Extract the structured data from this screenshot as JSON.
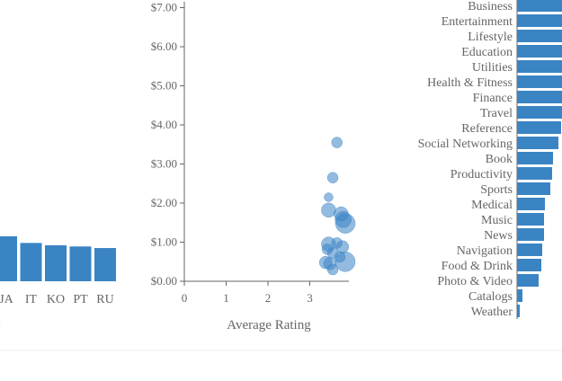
{
  "chart_data": [
    {
      "type": "bar",
      "categories": [
        "JA",
        "IT",
        "KO",
        "PT",
        "RU"
      ],
      "values": [
        1.15,
        0.98,
        0.92,
        0.89,
        0.85
      ],
      "xlabel": "e",
      "ylabel": ""
    },
    {
      "type": "scatter",
      "xlabel": "Average Rating",
      "ylabel": "",
      "xlim": [
        0,
        4
      ],
      "ylim": [
        0,
        7
      ],
      "x_ticks": [
        "0",
        "1",
        "2",
        "3"
      ],
      "y_ticks": [
        "$0.00",
        "$1.00",
        "$2.00",
        "$3.00",
        "$4.00",
        "$5.00",
        "$6.00",
        "$7.00"
      ],
      "points": [
        {
          "x": 3.65,
          "y": 3.55,
          "size": 6
        },
        {
          "x": 3.55,
          "y": 2.65,
          "size": 6
        },
        {
          "x": 3.45,
          "y": 2.15,
          "size": 5
        },
        {
          "x": 3.45,
          "y": 1.82,
          "size": 8
        },
        {
          "x": 3.75,
          "y": 1.72,
          "size": 8
        },
        {
          "x": 3.8,
          "y": 1.58,
          "size": 9
        },
        {
          "x": 3.85,
          "y": 1.48,
          "size": 11
        },
        {
          "x": 3.65,
          "y": 0.98,
          "size": 6
        },
        {
          "x": 3.45,
          "y": 0.95,
          "size": 8
        },
        {
          "x": 3.78,
          "y": 0.88,
          "size": 7
        },
        {
          "x": 3.42,
          "y": 0.82,
          "size": 6
        },
        {
          "x": 3.55,
          "y": 0.72,
          "size": 6
        },
        {
          "x": 3.72,
          "y": 0.62,
          "size": 6
        },
        {
          "x": 3.38,
          "y": 0.48,
          "size": 7
        },
        {
          "x": 3.48,
          "y": 0.45,
          "size": 7
        },
        {
          "x": 3.85,
          "y": 0.5,
          "size": 11
        },
        {
          "x": 3.55,
          "y": 0.3,
          "size": 6
        }
      ]
    },
    {
      "type": "bar",
      "orientation": "horizontal",
      "categories": [
        "Business",
        "Entertainment",
        "Lifestyle",
        "Education",
        "Utilities",
        "Health & Fitness",
        "Finance",
        "Travel",
        "Reference",
        "Social Networking",
        "Book",
        "Productivity",
        "Sports",
        "Medical",
        "Music",
        "News",
        "Navigation",
        "Food & Drink",
        "Photo & Video",
        "Catalogs",
        "Weather"
      ],
      "values": [
        100,
        100,
        100,
        100,
        100,
        100,
        100,
        100,
        98,
        92,
        80,
        78,
        74,
        62,
        60,
        60,
        56,
        54,
        48,
        12,
        6
      ]
    }
  ]
}
